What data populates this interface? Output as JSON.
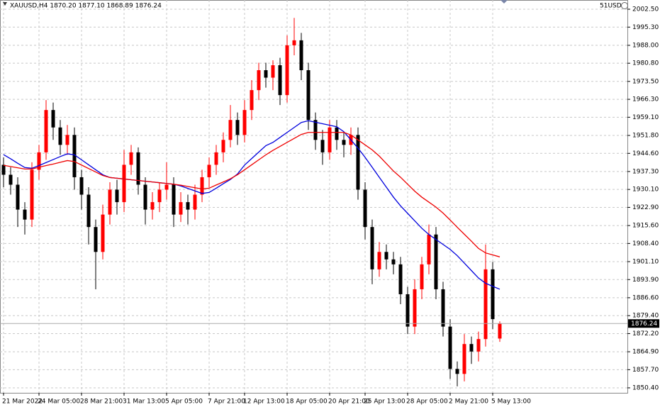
{
  "chart_data": {
    "type": "candlestick",
    "title": "XAUUSD,H4  1870.20 1877.10 1868.89 1876.24",
    "account": "51USD",
    "categories": [
      "21 Mar 2022",
      null,
      null,
      null,
      null,
      "24 Mar 05:00",
      null,
      null,
      null,
      null,
      null,
      "28 Mar 21:00",
      null,
      null,
      null,
      null,
      null,
      "31 Mar 13:00",
      null,
      null,
      null,
      null,
      null,
      "5 Apr 05:00",
      null,
      null,
      null,
      null,
      null,
      "7 Apr 21:00",
      null,
      null,
      null,
      null,
      "12 Apr 13:00",
      null,
      null,
      null,
      null,
      null,
      "18 Apr 05:00",
      null,
      null,
      null,
      null,
      null,
      "20 Apr 21:00",
      null,
      null,
      null,
      null,
      "25 Apr 13:00",
      null,
      null,
      null,
      null,
      null,
      "28 Apr 05:00",
      null,
      null,
      null,
      null,
      null,
      "2 May 21:00",
      null,
      null,
      null,
      null,
      null,
      "5 May 13:00",
      null
    ],
    "open": [
      1940,
      1936,
      1932,
      1922,
      1918,
      1938,
      1945,
      1962,
      1955,
      1948,
      1952,
      1935,
      1928,
      1915,
      1905,
      1920,
      1930,
      1925,
      1940,
      1945,
      1932,
      1922,
      1925,
      1930,
      1932,
      1920,
      1925,
      1922,
      1928,
      1935,
      1940,
      1945,
      1950,
      1958,
      1952,
      1962,
      1970,
      1978,
      1975,
      1980,
      1968,
      1988,
      1990,
      1978,
      1958,
      1950,
      1945,
      1955,
      1950,
      1948,
      1952,
      1930,
      1915,
      1898,
      1905,
      1902,
      1900,
      1888,
      1875,
      1890,
      1900,
      1912,
      1890,
      1875,
      1858,
      1856,
      1868,
      1865,
      1870,
      1898,
      1870.2
    ],
    "high": [
      1943,
      1939,
      1935,
      1925,
      1941,
      1948,
      1966,
      1965,
      1958,
      1956,
      1955,
      1938,
      1931,
      1918,
      1924,
      1933,
      1934,
      1946,
      1948,
      1947,
      1935,
      1929,
      1933,
      1941,
      1935,
      1929,
      1928,
      1932,
      1938,
      1943,
      1948,
      1953,
      1964,
      1961,
      1966,
      1974,
      1981,
      1981,
      1982,
      1983,
      1992,
      1999,
      1993,
      1981,
      1961,
      1954,
      1958,
      1958,
      1953,
      1955,
      1955,
      1933,
      1918,
      1909,
      1908,
      1905,
      1903,
      1891,
      1894,
      1903,
      1916,
      1915,
      1893,
      1878,
      1861,
      1872,
      1871,
      1873,
      1908,
      1901,
      1877.1
    ],
    "low": [
      1931,
      1928,
      1915,
      1912,
      1915,
      1934,
      1942,
      1950,
      1944,
      1944,
      1930,
      1922,
      1908,
      1890,
      1902,
      1916,
      1920,
      1921,
      1936,
      1928,
      1916,
      1918,
      1921,
      1926,
      1915,
      1917,
      1916,
      1918,
      1925,
      1931,
      1936,
      1941,
      1947,
      1948,
      1949,
      1958,
      1966,
      1971,
      1970,
      1964,
      1965,
      1984,
      1974,
      1954,
      1946,
      1940,
      1942,
      1946,
      1943,
      1944,
      1926,
      1910,
      1892,
      1895,
      1898,
      1896,
      1884,
      1872,
      1872,
      1886,
      1896,
      1886,
      1871,
      1854,
      1851,
      1853,
      1860,
      1861,
      1867,
      1874,
      1868.89
    ],
    "close": [
      1936,
      1932,
      1922,
      1918,
      1938,
      1945,
      1962,
      1955,
      1948,
      1952,
      1935,
      1928,
      1915,
      1905,
      1920,
      1930,
      1925,
      1940,
      1945,
      1932,
      1922,
      1925,
      1930,
      1932,
      1920,
      1925,
      1922,
      1928,
      1935,
      1940,
      1945,
      1950,
      1958,
      1952,
      1962,
      1970,
      1978,
      1975,
      1980,
      1968,
      1988,
      1990,
      1978,
      1958,
      1950,
      1945,
      1955,
      1950,
      1948,
      1952,
      1930,
      1915,
      1898,
      1905,
      1902,
      1900,
      1888,
      1875,
      1890,
      1900,
      1912,
      1890,
      1875,
      1858,
      1856,
      1868,
      1865,
      1870,
      1898,
      1878,
      1876.24
    ],
    "up_color": "#ff0000",
    "down_color": "#000000",
    "moving_averages": [
      {
        "color": "#0000dd",
        "values": [
          1944.1,
          1942.4,
          1940.6,
          1938.9,
          1938.6,
          1939.7,
          1940.9,
          1942.1,
          1943.3,
          1944.4,
          1944,
          1942,
          1940,
          1938,
          1936,
          1934.9,
          1934.6,
          1934.3,
          1934,
          1933.7,
          1933.4,
          1933.1,
          1932.8,
          1932.5,
          1932.2,
          1931.5,
          1930.5,
          1929.5,
          1928.5,
          1928.9,
          1930.6,
          1932.4,
          1934.1,
          1936.3,
          1939.9,
          1942.5,
          1945.1,
          1947.7,
          1949,
          1951,
          1953,
          1955,
          1957,
          1957.7,
          1957.1,
          1956.5,
          1955.9,
          1955.3,
          1953.3,
          1950,
          1946.7,
          1943,
          1939,
          1935,
          1931,
          1927,
          1923.5,
          1920.5,
          1917.5,
          1914.5,
          1912,
          1910,
          1908,
          1906,
          1903.5,
          1900.5,
          1897.5,
          1894.5,
          1892.4,
          1891.2,
          1890
        ]
      },
      {
        "color": "#ee0000",
        "values": [
          1939.8,
          1939.3,
          1938.8,
          1938.3,
          1938.3,
          1939,
          1939.7,
          1940.3,
          1941,
          1941.7,
          1941.3,
          1939.9,
          1938.5,
          1937.1,
          1935.7,
          1934.9,
          1934.6,
          1934.3,
          1934,
          1933.7,
          1933.4,
          1933.1,
          1932.8,
          1932.5,
          1932.2,
          1931.8,
          1931.3,
          1930.8,
          1930.3,
          1930.6,
          1931.9,
          1933.1,
          1934.4,
          1936,
          1938,
          1940,
          1942,
          1944,
          1945.8,
          1947.4,
          1949,
          1950.6,
          1952.2,
          1953,
          1953,
          1953,
          1953,
          1953,
          1953,
          1952,
          1950,
          1948,
          1946,
          1943.5,
          1940.5,
          1937.5,
          1935,
          1932.2,
          1929.4,
          1927,
          1925,
          1923,
          1920.6,
          1917.8,
          1914.9,
          1912.1,
          1909.3,
          1906.4,
          1904.6,
          1903.8,
          1903
        ]
      }
    ],
    "ylim": [
      1848.4,
      2006.2
    ],
    "yticks": [
      {
        "value": 2002.5,
        "label": "2002.50"
      },
      {
        "value": 1995.3,
        "label": "1995.30"
      },
      {
        "value": 1988,
        "label": "1988.00"
      },
      {
        "value": 1980.8,
        "label": "1980.80"
      },
      {
        "value": 1973.5,
        "label": "1973.50"
      },
      {
        "value": 1966.3,
        "label": "1966.30"
      },
      {
        "value": 1959.1,
        "label": "1959.10"
      },
      {
        "value": 1951.8,
        "label": "1951.80"
      },
      {
        "value": 1944.6,
        "label": "1944.60"
      },
      {
        "value": 1937.3,
        "label": "1937.30"
      },
      {
        "value": 1930.1,
        "label": "1930.10"
      },
      {
        "value": 1922.9,
        "label": "1922.90"
      },
      {
        "value": 1915.6,
        "label": "1915.60"
      },
      {
        "value": 1908.4,
        "label": "1908.40"
      },
      {
        "value": 1901.1,
        "label": "1901.10"
      },
      {
        "value": 1893.9,
        "label": "1893.90"
      },
      {
        "value": 1886.6,
        "label": "1886.60"
      },
      {
        "value": 1879.4,
        "label": "1879.40"
      },
      {
        "value": 1872.2,
        "label": "1872.20"
      },
      {
        "value": 1864.9,
        "label": "1864.90"
      },
      {
        "value": 1857.7,
        "label": "1857.70"
      },
      {
        "value": 1850.4,
        "label": "1850.40"
      }
    ],
    "grid": true
  }
}
